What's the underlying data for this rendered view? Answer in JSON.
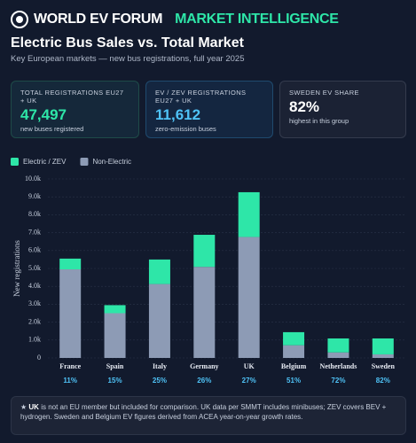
{
  "header": {
    "brand": "WORLD EV FORUM",
    "section": "MARKET INTELLIGENCE"
  },
  "kpis": [
    {
      "label": "TOTAL REGISTRATIONS EU27 + UK",
      "value": "47,497",
      "sub": "new buses registered"
    },
    {
      "label": "EV / ZEV REGISTRATIONS EU27 + UK",
      "value": "11,612",
      "sub": "zero-emission buses"
    },
    {
      "label": "SWEDEN EV SHARE",
      "value": "82%",
      "sub": "highest in this group"
    }
  ],
  "chart_data": {
    "type": "stacked_bar",
    "title": "Electric Bus Sales vs. Total Market",
    "subtitle": "Key European markets — new bus registrations, full year 2025",
    "ylabel": "New registrations",
    "categories": [
      "France",
      "Spain",
      "Italy",
      "Germany",
      "UK",
      "Belgium",
      "Netherlands",
      "Sweden"
    ],
    "series": [
      {
        "name": "Non-Electric",
        "color": "#8d9bb5",
        "values": [
          4950,
          2500,
          4130,
          5090,
          6760,
          710,
          310,
          200
        ]
      },
      {
        "name": "Electric / ZEV",
        "color": "#2ee6a8",
        "values": [
          600,
          450,
          1370,
          1790,
          2500,
          730,
          780,
          890
        ]
      }
    ],
    "shares": [
      "11%",
      "15%",
      "25%",
      "26%",
      "27%",
      "51%",
      "72%",
      "82%"
    ],
    "ylim": [
      0,
      10000
    ],
    "yticks": [
      0,
      {
        "value": 1000,
        "label": "1.0k"
      },
      {
        "value": 2000,
        "label": "2.0k"
      },
      {
        "value": 3000,
        "label": "3.0k"
      },
      {
        "value": 4000,
        "label": "4.0k"
      },
      {
        "value": 5000,
        "label": "5.0k"
      },
      {
        "value": 6000,
        "label": "6.0k"
      },
      {
        "value": 7000,
        "label": "7.0k"
      },
      {
        "value": 8000,
        "label": "8.0k"
      },
      {
        "value": 9000,
        "label": "9.0k"
      },
      {
        "value": 10000,
        "label": "10.0k"
      }
    ],
    "grid": true,
    "legend": "top-left"
  },
  "note": {
    "icon": "★",
    "bold": "UK",
    "text": " is not an EU member but included for comparison. UK data per SMMT includes minibuses; ZEV covers BEV + hydrogen. Sweden and Belgium EV figures derived from ACEA year-on-year growth rates."
  }
}
